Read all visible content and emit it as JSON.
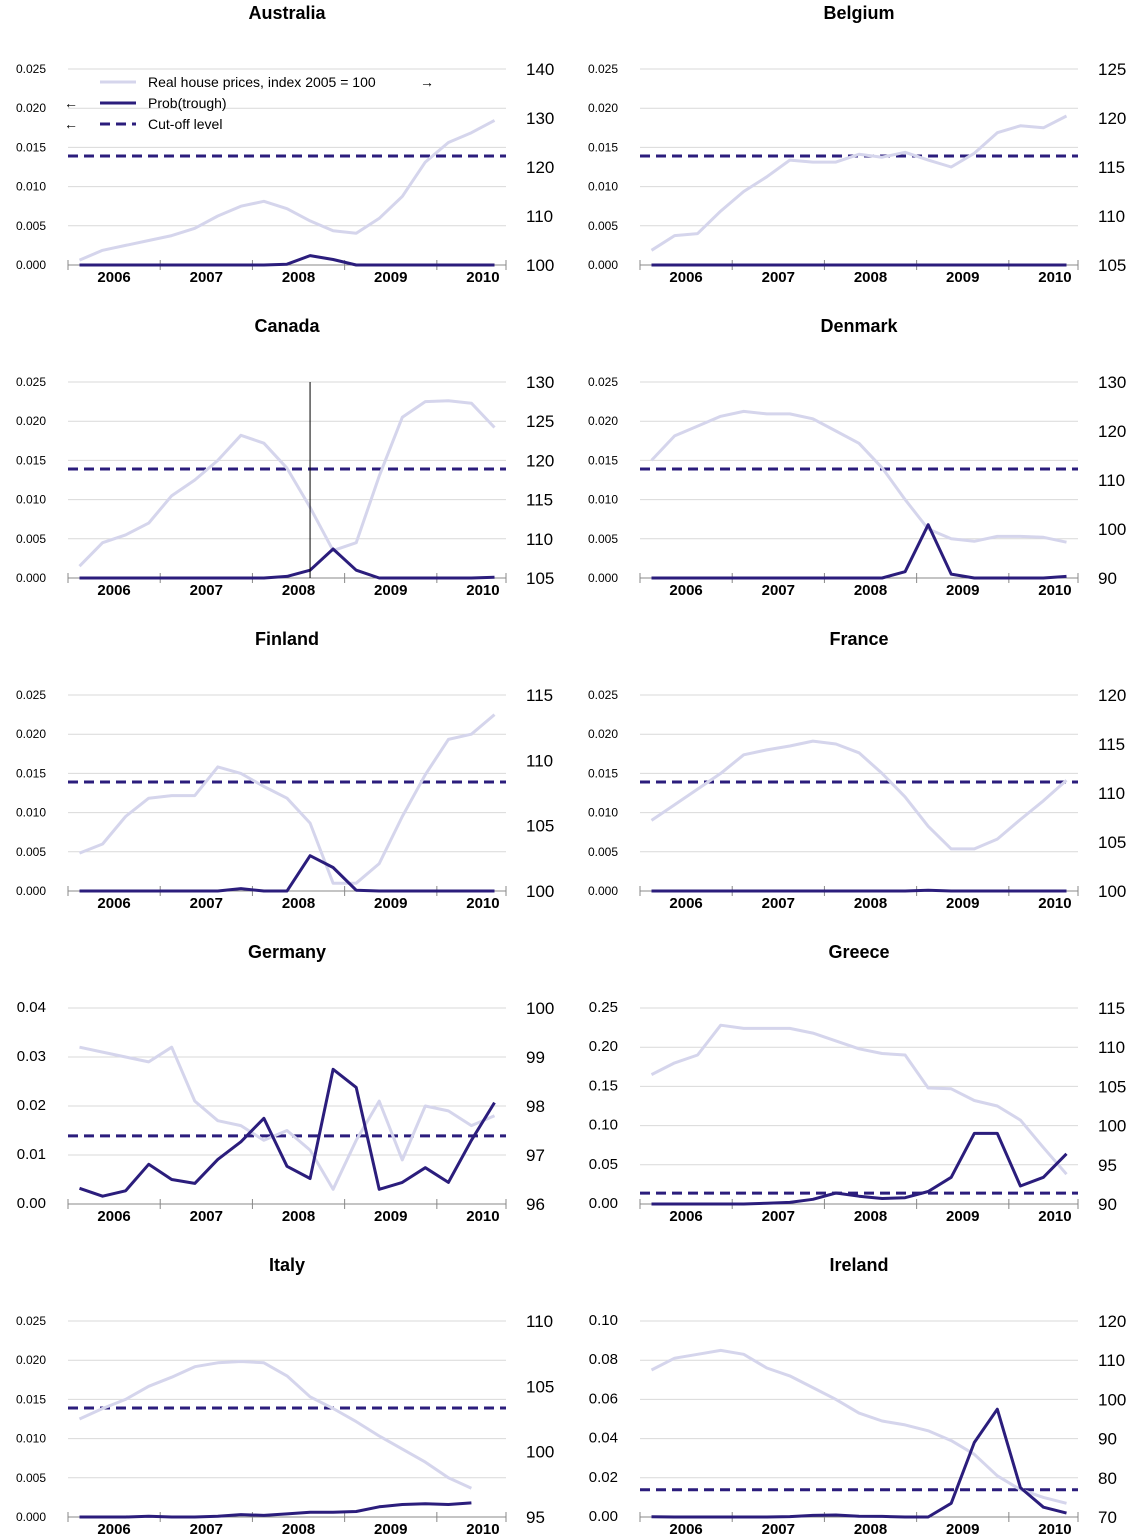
{
  "colors": {
    "price": "#d5d5ec",
    "prob": "#2b1d7c",
    "cutoff": "#2b1d7c",
    "grid": "#d9d9d9",
    "axis": "#888888"
  },
  "legend": {
    "price_label": "Real house prices, index 2005 = 100",
    "price_arrow": "→",
    "prob_label": "Prob(trough)",
    "prob_arrow": "←",
    "cutoff_label": "Cut-off level",
    "cutoff_arrow": "←"
  },
  "chart_data": [
    {
      "type": "line",
      "title": "Australia",
      "x": [
        2005.875,
        2006.125,
        2006.375,
        2006.625,
        2006.875,
        2007.125,
        2007.375,
        2007.625,
        2007.875,
        2008.125,
        2008.375,
        2008.625,
        2008.875,
        2009.125,
        2009.375,
        2009.625,
        2009.875,
        2010.125,
        2010.375
      ],
      "xlim": [
        2005.75,
        2010.5
      ],
      "x_ticks": [
        2006,
        2007,
        2008,
        2009,
        2010
      ],
      "ylim_left": [
        0,
        0.025
      ],
      "yticks_left": [
        "0.000",
        "0.005",
        "0.010",
        "0.015",
        "0.020",
        "0.025"
      ],
      "ylim_right": [
        100,
        140
      ],
      "yticks_right": [
        "100",
        "110",
        "120",
        "130",
        "140"
      ],
      "cutoff": 0.0139,
      "series": [
        {
          "role": "price",
          "axis": "right",
          "values": [
            101,
            103,
            104,
            105,
            106,
            107.5,
            110,
            112,
            113,
            111.5,
            109,
            107,
            106.5,
            109.5,
            114,
            121,
            125,
            127,
            129.5
          ]
        },
        {
          "role": "prob",
          "axis": "left",
          "values": [
            0,
            0,
            0,
            0,
            0,
            0,
            0,
            0,
            0,
            0.0001,
            0.0012,
            0.0007,
            0,
            0,
            0,
            0,
            0,
            0,
            0
          ]
        }
      ]
    },
    {
      "type": "line",
      "title": "Belgium",
      "x": [
        2005.875,
        2006.125,
        2006.375,
        2006.625,
        2006.875,
        2007.125,
        2007.375,
        2007.625,
        2007.875,
        2008.125,
        2008.375,
        2008.625,
        2008.875,
        2009.125,
        2009.375,
        2009.625,
        2009.875,
        2010.125,
        2010.375
      ],
      "xlim": [
        2005.75,
        2010.5
      ],
      "x_ticks": [
        2006,
        2007,
        2008,
        2009,
        2010
      ],
      "ylim_left": [
        0,
        0.025
      ],
      "yticks_left": [
        "0.000",
        "0.005",
        "0.010",
        "0.015",
        "0.020",
        "0.025"
      ],
      "ylim_right": [
        105,
        125
      ],
      "yticks_right": [
        "105",
        "110",
        "115",
        "120",
        "125"
      ],
      "cutoff": 0.0139,
      "series": [
        {
          "role": "price",
          "axis": "right",
          "values": [
            106.5,
            108,
            108.2,
            110.5,
            112.5,
            114,
            115.7,
            115.5,
            115.5,
            116.3,
            116,
            116.5,
            115.7,
            115,
            116.4,
            118.5,
            119.2,
            119,
            120.2
          ]
        },
        {
          "role": "prob",
          "axis": "left",
          "values": [
            0,
            0,
            0,
            0,
            0,
            0,
            0,
            0,
            0,
            0,
            0,
            0,
            0,
            0,
            0,
            0,
            0,
            0,
            0
          ]
        }
      ]
    },
    {
      "type": "line",
      "title": "Canada",
      "x": [
        2005.875,
        2006.125,
        2006.375,
        2006.625,
        2006.875,
        2007.125,
        2007.375,
        2007.625,
        2007.875,
        2008.125,
        2008.375,
        2008.625,
        2008.875,
        2009.125,
        2009.375,
        2009.625,
        2009.875,
        2010.125,
        2010.375
      ],
      "xlim": [
        2005.75,
        2010.5
      ],
      "x_ticks": [
        2006,
        2007,
        2008,
        2009,
        2010
      ],
      "ylim_left": [
        0,
        0.025
      ],
      "yticks_left": [
        "0.000",
        "0.005",
        "0.010",
        "0.015",
        "0.020",
        "0.025"
      ],
      "ylim_right": [
        105,
        130
      ],
      "yticks_right": [
        "105",
        "110",
        "115",
        "120",
        "125",
        "130"
      ],
      "cutoff": 0.0139,
      "vline_x": 2008.375,
      "series": [
        {
          "role": "price",
          "axis": "right",
          "values": [
            106.5,
            109.5,
            110.5,
            112,
            115.5,
            117.5,
            120,
            123.2,
            122.2,
            119,
            114,
            108.5,
            109.5,
            118,
            125.5,
            127.5,
            127.6,
            127.3,
            124.2
          ]
        },
        {
          "role": "prob",
          "axis": "left",
          "values": [
            0,
            0,
            0,
            0,
            0,
            0,
            0,
            0,
            0,
            0.0002,
            0.001,
            0.0037,
            0.001,
            0,
            0,
            0,
            0,
            0,
            0.0001
          ]
        }
      ]
    },
    {
      "type": "line",
      "title": "Denmark",
      "x": [
        2005.875,
        2006.125,
        2006.375,
        2006.625,
        2006.875,
        2007.125,
        2007.375,
        2007.625,
        2007.875,
        2008.125,
        2008.375,
        2008.625,
        2008.875,
        2009.125,
        2009.375,
        2009.625,
        2009.875,
        2010.125,
        2010.375
      ],
      "xlim": [
        2005.75,
        2010.5
      ],
      "x_ticks": [
        2006,
        2007,
        2008,
        2009,
        2010
      ],
      "ylim_left": [
        0,
        0.025
      ],
      "yticks_left": [
        "0.000",
        "0.005",
        "0.010",
        "0.015",
        "0.020",
        "0.025"
      ],
      "ylim_right": [
        90,
        130
      ],
      "yticks_right": [
        "90",
        "100",
        "110",
        "120",
        "130"
      ],
      "cutoff": 0.0139,
      "series": [
        {
          "role": "price",
          "axis": "right",
          "values": [
            114,
            119,
            121,
            123,
            124,
            123.5,
            123.5,
            122.5,
            120,
            117.5,
            112.5,
            106,
            100,
            98,
            97.5,
            98.5,
            98.5,
            98.3,
            97.3
          ]
        },
        {
          "role": "prob",
          "axis": "left",
          "values": [
            0,
            0,
            0,
            0,
            0,
            0,
            0,
            0,
            0,
            0,
            0,
            0.0008,
            0.0068,
            0.0005,
            0,
            0,
            0,
            0,
            0.0002
          ]
        }
      ]
    },
    {
      "type": "line",
      "title": "Finland",
      "x": [
        2005.875,
        2006.125,
        2006.375,
        2006.625,
        2006.875,
        2007.125,
        2007.375,
        2007.625,
        2007.875,
        2008.125,
        2008.375,
        2008.625,
        2008.875,
        2009.125,
        2009.375,
        2009.625,
        2009.875,
        2010.125,
        2010.375
      ],
      "xlim": [
        2005.75,
        2010.5
      ],
      "x_ticks": [
        2006,
        2007,
        2008,
        2009,
        2010
      ],
      "ylim_left": [
        0,
        0.025
      ],
      "yticks_left": [
        "0.000",
        "0.005",
        "0.010",
        "0.015",
        "0.020",
        "0.025"
      ],
      "ylim_right": [
        100,
        115
      ],
      "yticks_right": [
        "100",
        "105",
        "110",
        "115"
      ],
      "cutoff": 0.0139,
      "series": [
        {
          "role": "price",
          "axis": "right",
          "values": [
            102.9,
            103.6,
            105.7,
            107.1,
            107.3,
            107.3,
            109.5,
            109,
            108,
            107.1,
            105.2,
            100.6,
            100.6,
            102.1,
            105.7,
            108.9,
            111.6,
            112,
            113.5
          ]
        },
        {
          "role": "prob",
          "axis": "left",
          "values": [
            0,
            0,
            0,
            0,
            0,
            0,
            0,
            0.0003,
            0,
            0,
            0.0045,
            0.003,
            0.0001,
            0,
            0,
            0,
            0,
            0,
            0
          ]
        }
      ]
    },
    {
      "type": "line",
      "title": "France",
      "x": [
        2005.875,
        2006.125,
        2006.375,
        2006.625,
        2006.875,
        2007.125,
        2007.375,
        2007.625,
        2007.875,
        2008.125,
        2008.375,
        2008.625,
        2008.875,
        2009.125,
        2009.375,
        2009.625,
        2009.875,
        2010.125,
        2010.375
      ],
      "xlim": [
        2005.75,
        2010.5
      ],
      "x_ticks": [
        2006,
        2007,
        2008,
        2009,
        2010
      ],
      "ylim_left": [
        0,
        0.025
      ],
      "yticks_left": [
        "0.000",
        "0.005",
        "0.010",
        "0.015",
        "0.020",
        "0.025"
      ],
      "ylim_right": [
        100,
        120
      ],
      "yticks_right": [
        "100",
        "105",
        "110",
        "115",
        "120"
      ],
      "cutoff": 0.0139,
      "series": [
        {
          "role": "price",
          "axis": "right",
          "values": [
            107.2,
            108.8,
            110.4,
            112.0,
            113.9,
            114.4,
            114.8,
            115.3,
            115.0,
            114.1,
            112.0,
            109.6,
            106.6,
            104.3,
            104.3,
            105.3,
            107.3,
            109.2,
            111.3
          ]
        },
        {
          "role": "prob",
          "axis": "left",
          "values": [
            0,
            0,
            0,
            0,
            0,
            0,
            0,
            0,
            0,
            0,
            0,
            0,
            0.0001,
            0,
            0,
            0,
            0,
            0,
            0
          ]
        }
      ]
    },
    {
      "type": "line",
      "title": "Germany",
      "x": [
        2005.875,
        2006.125,
        2006.375,
        2006.625,
        2006.875,
        2007.125,
        2007.375,
        2007.625,
        2007.875,
        2008.125,
        2008.375,
        2008.625,
        2008.875,
        2009.125,
        2009.375,
        2009.625,
        2009.875,
        2010.125,
        2010.375
      ],
      "xlim": [
        2005.75,
        2010.5
      ],
      "x_ticks": [
        2006,
        2007,
        2008,
        2009,
        2010
      ],
      "ylim_left": [
        0,
        0.04
      ],
      "yticks_left": [
        "0.00",
        "0.01",
        "0.02",
        "0.03",
        "0.04"
      ],
      "ylim_right": [
        96,
        100
      ],
      "yticks_right": [
        "96",
        "97",
        "98",
        "99",
        "100"
      ],
      "cutoff": 0.0139,
      "series": [
        {
          "role": "price",
          "axis": "right",
          "values": [
            99.2,
            99.1,
            99,
            98.9,
            99.2,
            98.1,
            97.7,
            97.6,
            97.3,
            97.5,
            97.1,
            96.3,
            97.3,
            98.1,
            96.9,
            98,
            97.9,
            97.6,
            97.8
          ]
        },
        {
          "role": "prob",
          "axis": "left",
          "values": [
            0.0032,
            0.0016,
            0.0027,
            0.0081,
            0.005,
            0.0042,
            0.0091,
            0.0127,
            0.0175,
            0.0077,
            0.0052,
            0.0275,
            0.0238,
            0.003,
            0.0044,
            0.0074,
            0.0044,
            0.013,
            0.0207
          ]
        }
      ]
    },
    {
      "type": "line",
      "title": "Greece",
      "x": [
        2005.875,
        2006.125,
        2006.375,
        2006.625,
        2006.875,
        2007.125,
        2007.375,
        2007.625,
        2007.875,
        2008.125,
        2008.375,
        2008.625,
        2008.875,
        2009.125,
        2009.375,
        2009.625,
        2009.875,
        2010.125,
        2010.375
      ],
      "xlim": [
        2005.75,
        2010.5
      ],
      "x_ticks": [
        2006,
        2007,
        2008,
        2009,
        2010
      ],
      "ylim_left": [
        0,
        0.25
      ],
      "yticks_left": [
        "0.00",
        "0.05",
        "0.10",
        "0.15",
        "0.20",
        "0.25"
      ],
      "ylim_right": [
        90,
        115
      ],
      "yticks_right": [
        "90",
        "95",
        "100",
        "105",
        "110",
        "115"
      ],
      "cutoff": 0.0139,
      "series": [
        {
          "role": "price",
          "axis": "right",
          "values": [
            106.5,
            108,
            109,
            112.8,
            112.4,
            112.4,
            112.4,
            111.8,
            110.8,
            109.8,
            109.2,
            109,
            104.8,
            104.7,
            103.2,
            102.5,
            100.7,
            97.2,
            93.8
          ]
        },
        {
          "role": "prob",
          "axis": "left",
          "values": [
            0,
            0,
            0,
            0,
            0,
            0.001,
            0.002,
            0.006,
            0.014,
            0.01,
            0.007,
            0.008,
            0.016,
            0.034,
            0.09,
            0.09,
            0.023,
            0.034,
            0.064
          ]
        }
      ]
    },
    {
      "type": "line",
      "title": "Italy",
      "x": [
        2005.875,
        2006.125,
        2006.375,
        2006.625,
        2006.875,
        2007.125,
        2007.375,
        2007.625,
        2007.875,
        2008.125,
        2008.375,
        2008.625,
        2008.875,
        2009.125,
        2009.375,
        2009.625,
        2009.875,
        2010.125
      ],
      "xlim": [
        2005.75,
        2010.5
      ],
      "x_ticks": [
        2006,
        2007,
        2008,
        2009,
        2010
      ],
      "ylim_left": [
        0,
        0.025
      ],
      "yticks_left": [
        "0.000",
        "0.005",
        "0.010",
        "0.015",
        "0.020",
        "0.025"
      ],
      "ylim_right": [
        95,
        110
      ],
      "yticks_right": [
        "95",
        "100",
        "105",
        "110"
      ],
      "cutoff": 0.0139,
      "series": [
        {
          "role": "price",
          "axis": "right",
          "values": [
            102.5,
            103.3,
            104,
            105,
            105.7,
            106.5,
            106.8,
            106.9,
            106.8,
            105.8,
            104.2,
            103.3,
            102.3,
            101.2,
            100.2,
            99.2,
            98,
            97.2
          ]
        },
        {
          "role": "prob",
          "axis": "left",
          "values": [
            0,
            0,
            0,
            0.0001,
            0,
            0,
            0.0001,
            0.0003,
            0.0002,
            0.0004,
            0.0006,
            0.0006,
            0.0007,
            0.0013,
            0.0016,
            0.0017,
            0.0016,
            0.0018
          ]
        }
      ]
    },
    {
      "type": "line",
      "title": "Ireland",
      "x": [
        2005.875,
        2006.125,
        2006.375,
        2006.625,
        2006.875,
        2007.125,
        2007.375,
        2007.625,
        2007.875,
        2008.125,
        2008.375,
        2008.625,
        2008.875,
        2009.125,
        2009.375,
        2009.625,
        2009.875,
        2010.125,
        2010.375
      ],
      "xlim": [
        2005.75,
        2010.5
      ],
      "x_ticks": [
        2006,
        2007,
        2008,
        2009,
        2010
      ],
      "ylim_left": [
        0,
        0.1
      ],
      "yticks_left": [
        "0.00",
        "0.02",
        "0.04",
        "0.06",
        "0.08",
        "0.10"
      ],
      "ylim_right": [
        70,
        120
      ],
      "yticks_right": [
        "70",
        "80",
        "90",
        "100",
        "110",
        "120"
      ],
      "cutoff": 0.0139,
      "series": [
        {
          "role": "price",
          "axis": "right",
          "values": [
            107.5,
            110.5,
            111.5,
            112.5,
            111.5,
            108,
            106,
            103,
            100,
            96.5,
            94.5,
            93.5,
            92,
            89.5,
            86,
            80.5,
            77,
            75,
            73.5
          ]
        },
        {
          "role": "prob",
          "axis": "left",
          "values": [
            0.0001,
            0,
            0,
            0,
            0,
            0,
            0.0002,
            0.0008,
            0.001,
            0.0004,
            0.0003,
            0,
            0,
            0.007,
            0.038,
            0.055,
            0.015,
            0.005,
            0.002
          ]
        }
      ]
    }
  ]
}
